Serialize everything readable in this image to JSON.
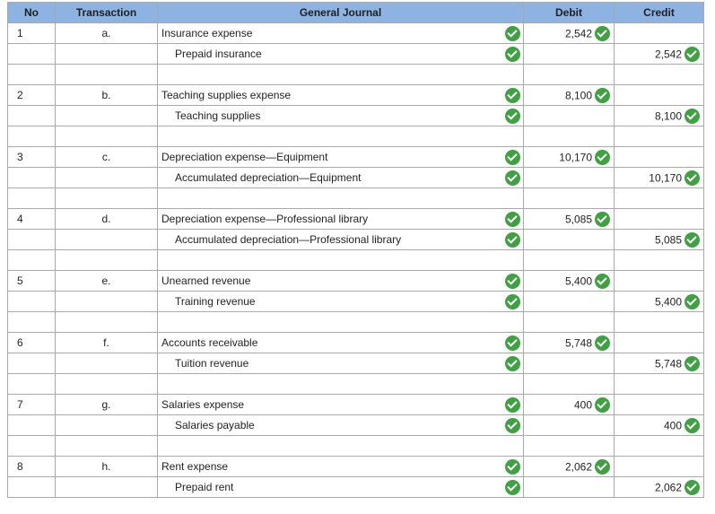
{
  "headers": {
    "no": "No",
    "transaction": "Transaction",
    "journal": "General Journal",
    "debit": "Debit",
    "credit": "Credit"
  },
  "entries": [
    {
      "no": "1",
      "tx": "a.",
      "debit_account": "Insurance expense",
      "credit_account": "Prepaid insurance",
      "debit": "2,542",
      "credit": "2,542"
    },
    {
      "no": "2",
      "tx": "b.",
      "debit_account": "Teaching supplies expense",
      "credit_account": "Teaching supplies",
      "debit": "8,100",
      "credit": "8,100"
    },
    {
      "no": "3",
      "tx": "c.",
      "debit_account": "Depreciation expense—Equipment",
      "credit_account": "Accumulated depreciation—Equipment",
      "debit": "10,170",
      "credit": "10,170"
    },
    {
      "no": "4",
      "tx": "d.",
      "debit_account": "Depreciation expense—Professional library",
      "credit_account": "Accumulated depreciation—Professional library",
      "debit": "5,085",
      "credit": "5,085"
    },
    {
      "no": "5",
      "tx": "e.",
      "debit_account": "Unearned revenue",
      "credit_account": "Training revenue",
      "debit": "5,400",
      "credit": "5,400"
    },
    {
      "no": "6",
      "tx": "f.",
      "debit_account": "Accounts receivable",
      "credit_account": "Tuition revenue",
      "debit": "5,748",
      "credit": "5,748"
    },
    {
      "no": "7",
      "tx": "g.",
      "debit_account": "Salaries expense",
      "credit_account": "Salaries payable",
      "debit": "400",
      "credit": "400"
    },
    {
      "no": "8",
      "tx": "h.",
      "debit_account": "Rent expense",
      "credit_account": "Prepaid rent",
      "debit": "2,062",
      "credit": "2,062"
    }
  ],
  "icons": {
    "correct": "checkmark-icon",
    "color": "#3fa142"
  },
  "header_color": "#8db3e2"
}
